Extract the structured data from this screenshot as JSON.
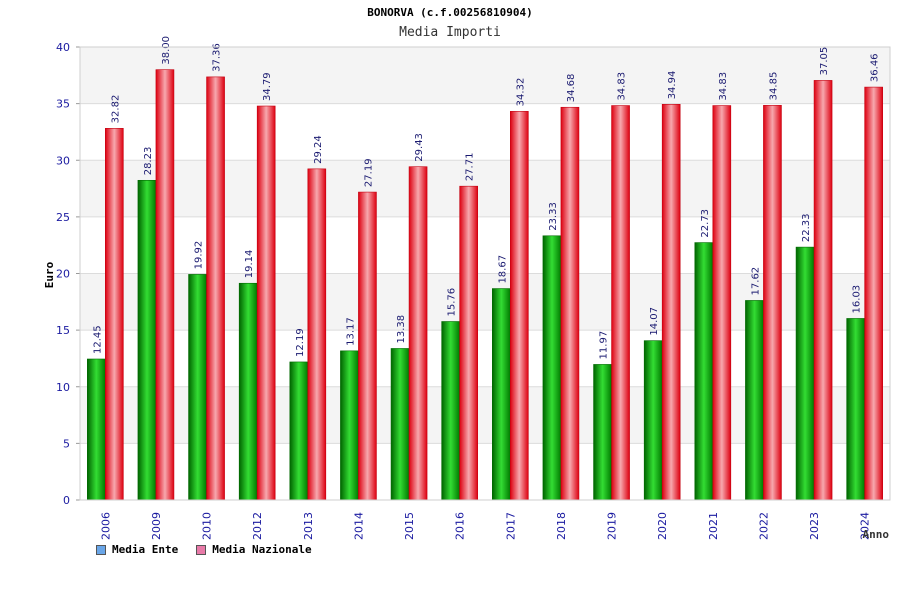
{
  "header": {
    "title": "BONORVA (c.f.00256810904)",
    "subtitle": "Media Importi"
  },
  "legend": {
    "items": [
      {
        "label": "Media Ente",
        "color": "#6aa6e8"
      },
      {
        "label": "Media Nazionale",
        "color": "#e87aa8"
      }
    ]
  },
  "chart_data": {
    "type": "bar",
    "title": "BONORVA (c.f.00256810904)",
    "subtitle": "Media Importi",
    "xlabel": "Anno",
    "ylabel": "Euro",
    "ylim": [
      0,
      40
    ],
    "yticks": [
      0,
      5,
      10,
      15,
      20,
      25,
      30,
      35,
      40
    ],
    "grid": true,
    "legend_position": "bottom-left",
    "categories": [
      "2006",
      "2009",
      "2010",
      "2012",
      "2013",
      "2014",
      "2015",
      "2016",
      "2017",
      "2018",
      "2019",
      "2020",
      "2021",
      "2022",
      "2023",
      "2024"
    ],
    "series": [
      {
        "name": "Media Ente",
        "color": "#00b000",
        "values": [
          12.45,
          28.23,
          19.92,
          19.14,
          12.19,
          13.17,
          13.38,
          15.76,
          18.67,
          23.33,
          11.97,
          14.07,
          22.73,
          17.62,
          22.33,
          16.03
        ],
        "labels": [
          "12.45",
          "28.23",
          "19.92",
          "19.14",
          "12.19",
          "13.17",
          "13.38",
          "15.76",
          "18.67",
          "23.33",
          "11.97",
          "14.07",
          "22.73",
          "17.62",
          "22.33",
          "16.03"
        ]
      },
      {
        "name": "Media Nazionale",
        "color": "#ee1c25",
        "values": [
          32.82,
          38.0,
          37.36,
          34.79,
          29.24,
          27.19,
          29.43,
          27.71,
          34.32,
          34.68,
          34.83,
          34.94,
          34.83,
          34.85,
          37.05,
          36.46
        ],
        "labels": [
          "32.82",
          "38.00",
          "37.36",
          "34.79",
          "29.24",
          "27.19",
          "29.43",
          "27.71",
          "34.32",
          "34.68",
          "34.83",
          "34.94",
          "34.83",
          "34.85",
          "37.05",
          "36.46"
        ]
      }
    ]
  }
}
